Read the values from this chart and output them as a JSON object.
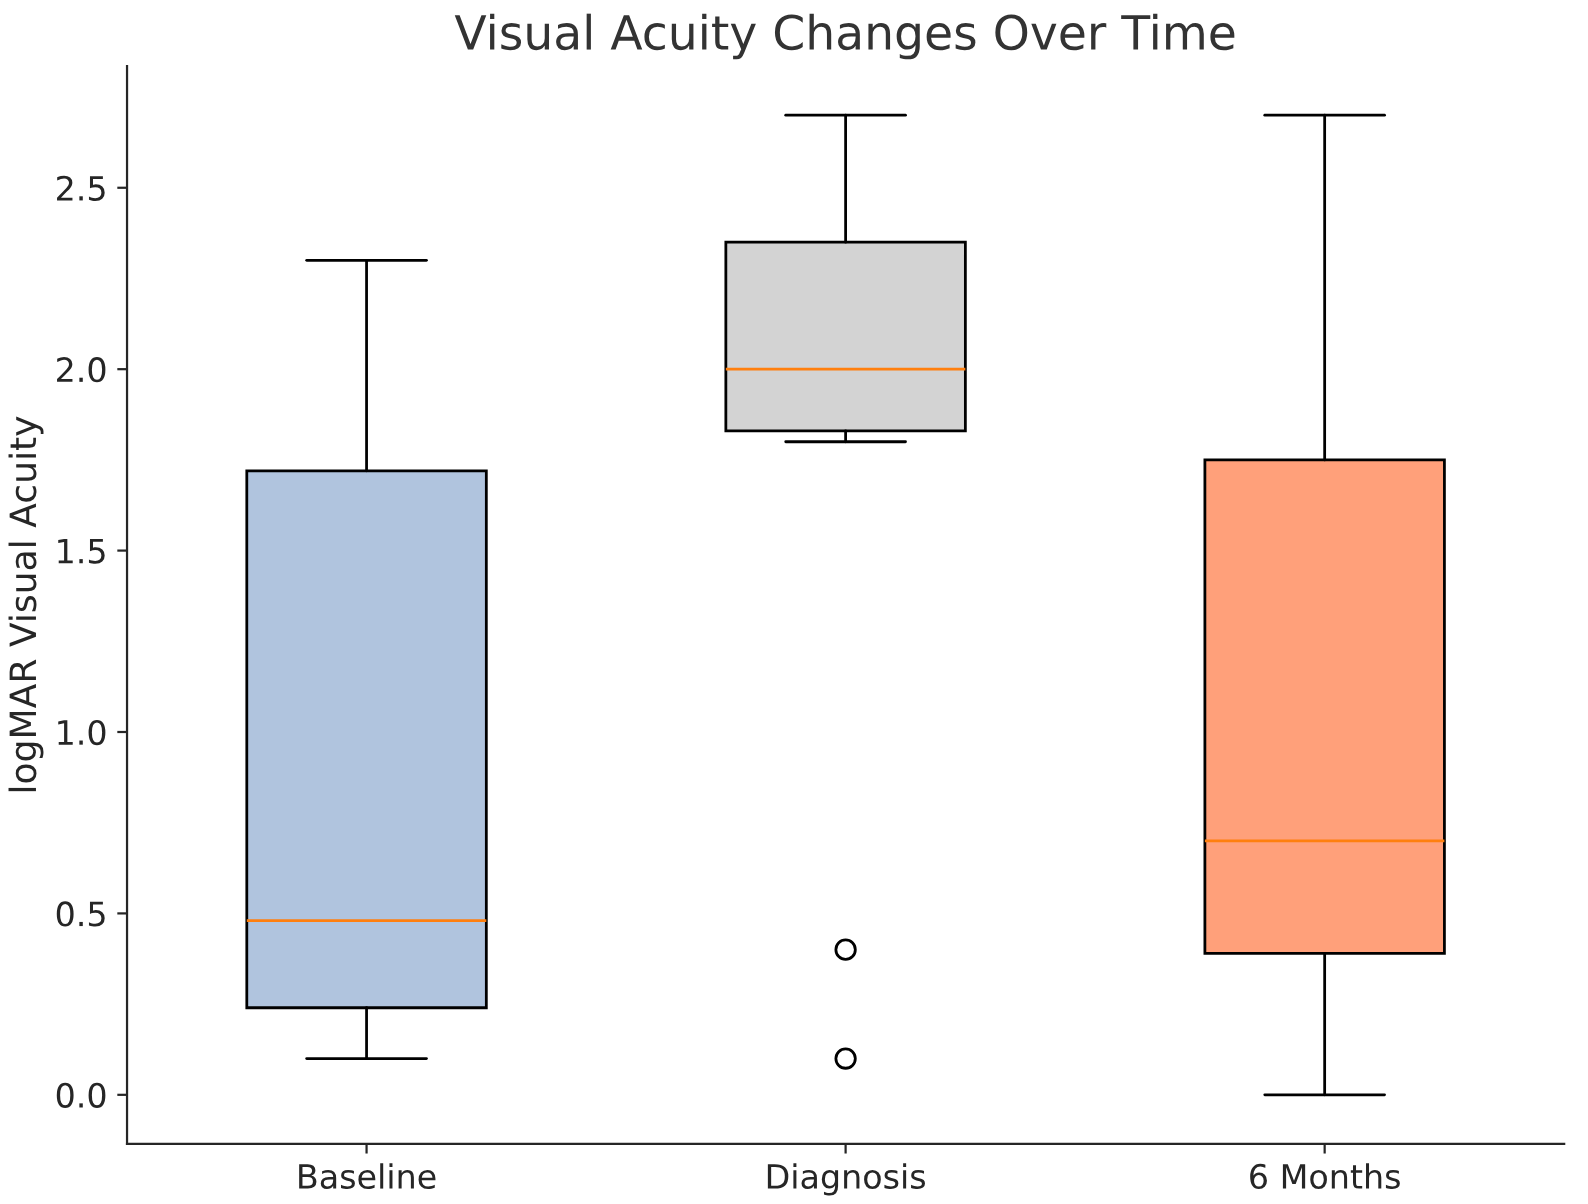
{
  "chart_data": {
    "type": "box",
    "title": "Visual Acuity Changes Over Time",
    "ylabel": "logMAR Visual Acuity",
    "categories": [
      "Baseline",
      "Diagnosis",
      "6 Months"
    ],
    "colors": [
      "#b0c4de",
      "#d3d3d3",
      "#ffa07a"
    ],
    "boxes": [
      {
        "low": 0.1,
        "q1": 0.24,
        "median": 0.48,
        "q3": 1.72,
        "high": 2.3
      },
      {
        "low": 1.8,
        "q1": 1.83,
        "median": 2.0,
        "q3": 2.35,
        "high": 2.7,
        "outliers": [
          0.4,
          0.1
        ]
      },
      {
        "low": 0.0,
        "q1": 0.39,
        "median": 0.7,
        "q3": 1.75,
        "high": 2.7
      }
    ],
    "ylim": [
      -0.135,
      2.835
    ],
    "yticks": [
      {
        "value": 0,
        "label": "0.0"
      },
      0.5,
      {
        "value": 1,
        "label": "1.0"
      },
      1.5,
      {
        "value": 2,
        "label": "2.0"
      },
      2.5
    ],
    "grid": false
  }
}
